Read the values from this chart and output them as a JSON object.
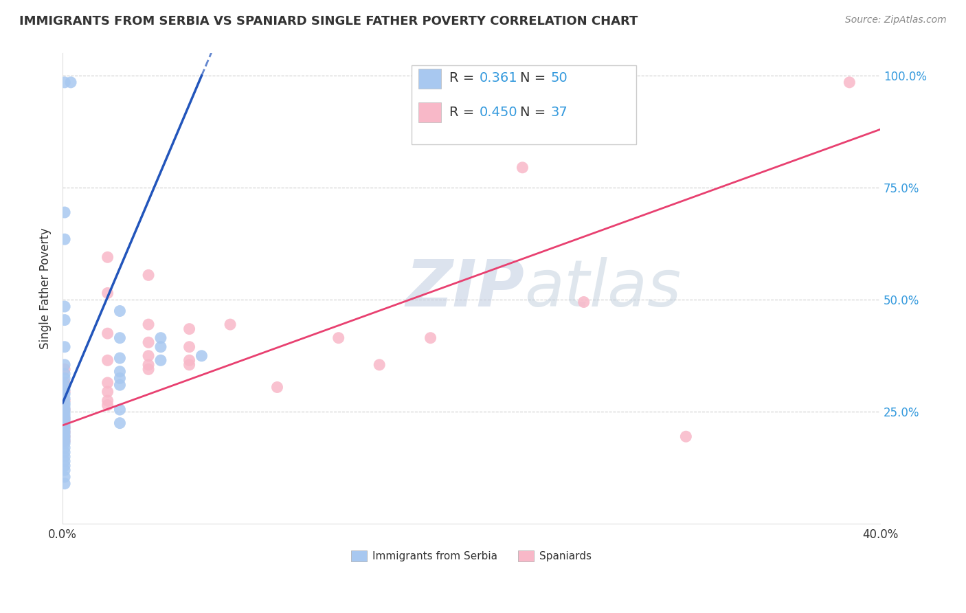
{
  "title": "IMMIGRANTS FROM SERBIA VS SPANIARD SINGLE FATHER POVERTY CORRELATION CHART",
  "source": "Source: ZipAtlas.com",
  "ylabel": "Single Father Poverty",
  "legend_serbia": {
    "R": "0.361",
    "N": "50",
    "label": "Immigrants from Serbia"
  },
  "legend_spaniard": {
    "R": "0.450",
    "N": "37",
    "label": "Spaniards"
  },
  "serbia_color": "#a8c8f0",
  "spaniard_color": "#f8b8c8",
  "serbia_line_color": "#2255bb",
  "spaniard_line_color": "#e84070",
  "serbia_scatter": [
    [
      0.001,
      0.985
    ],
    [
      0.004,
      0.985
    ],
    [
      0.001,
      0.695
    ],
    [
      0.001,
      0.635
    ],
    [
      0.001,
      0.485
    ],
    [
      0.001,
      0.455
    ],
    [
      0.001,
      0.395
    ],
    [
      0.001,
      0.355
    ],
    [
      0.001,
      0.335
    ],
    [
      0.001,
      0.325
    ],
    [
      0.001,
      0.31
    ],
    [
      0.001,
      0.3
    ],
    [
      0.001,
      0.29
    ],
    [
      0.001,
      0.28
    ],
    [
      0.001,
      0.27
    ],
    [
      0.001,
      0.265
    ],
    [
      0.001,
      0.258
    ],
    [
      0.001,
      0.252
    ],
    [
      0.001,
      0.246
    ],
    [
      0.001,
      0.24
    ],
    [
      0.001,
      0.234
    ],
    [
      0.001,
      0.228
    ],
    [
      0.001,
      0.222
    ],
    [
      0.001,
      0.216
    ],
    [
      0.001,
      0.21
    ],
    [
      0.001,
      0.204
    ],
    [
      0.001,
      0.198
    ],
    [
      0.001,
      0.192
    ],
    [
      0.001,
      0.186
    ],
    [
      0.001,
      0.18
    ],
    [
      0.001,
      0.17
    ],
    [
      0.001,
      0.16
    ],
    [
      0.001,
      0.15
    ],
    [
      0.001,
      0.14
    ],
    [
      0.001,
      0.13
    ],
    [
      0.001,
      0.12
    ],
    [
      0.001,
      0.105
    ],
    [
      0.001,
      0.09
    ],
    [
      0.028,
      0.475
    ],
    [
      0.028,
      0.415
    ],
    [
      0.028,
      0.37
    ],
    [
      0.028,
      0.34
    ],
    [
      0.028,
      0.325
    ],
    [
      0.028,
      0.31
    ],
    [
      0.028,
      0.255
    ],
    [
      0.028,
      0.225
    ],
    [
      0.048,
      0.415
    ],
    [
      0.048,
      0.395
    ],
    [
      0.048,
      0.365
    ],
    [
      0.068,
      0.375
    ]
  ],
  "spaniard_scatter": [
    [
      0.001,
      0.345
    ],
    [
      0.001,
      0.315
    ],
    [
      0.001,
      0.295
    ],
    [
      0.001,
      0.275
    ],
    [
      0.001,
      0.255
    ],
    [
      0.001,
      0.235
    ],
    [
      0.001,
      0.215
    ],
    [
      0.001,
      0.205
    ],
    [
      0.001,
      0.195
    ],
    [
      0.001,
      0.185
    ],
    [
      0.022,
      0.595
    ],
    [
      0.022,
      0.515
    ],
    [
      0.022,
      0.425
    ],
    [
      0.022,
      0.365
    ],
    [
      0.022,
      0.315
    ],
    [
      0.022,
      0.295
    ],
    [
      0.022,
      0.275
    ],
    [
      0.022,
      0.265
    ],
    [
      0.042,
      0.555
    ],
    [
      0.042,
      0.445
    ],
    [
      0.042,
      0.405
    ],
    [
      0.042,
      0.375
    ],
    [
      0.042,
      0.355
    ],
    [
      0.042,
      0.345
    ],
    [
      0.062,
      0.435
    ],
    [
      0.062,
      0.395
    ],
    [
      0.062,
      0.365
    ],
    [
      0.062,
      0.355
    ],
    [
      0.082,
      0.445
    ],
    [
      0.105,
      0.305
    ],
    [
      0.135,
      0.415
    ],
    [
      0.155,
      0.355
    ],
    [
      0.18,
      0.415
    ],
    [
      0.225,
      0.795
    ],
    [
      0.255,
      0.495
    ],
    [
      0.305,
      0.195
    ],
    [
      0.385,
      0.985
    ]
  ],
  "watermark_zip": "ZIP",
  "watermark_atlas": "atlas",
  "xlim": [
    0.0,
    0.4
  ],
  "ylim": [
    0.0,
    1.05
  ],
  "x_ticks": [
    0.0,
    0.1,
    0.2,
    0.3,
    0.4
  ],
  "x_tick_labels": [
    "0.0%",
    "",
    "",
    "",
    "40.0%"
  ],
  "y_ticks": [
    0.25,
    0.5,
    0.75,
    1.0
  ],
  "y_tick_labels_right": [
    "25.0%",
    "50.0%",
    "75.0%",
    "100.0%"
  ],
  "background_color": "#ffffff",
  "grid_color": "#cccccc",
  "serbia_line_x0": 0.0,
  "serbia_line_y0": 0.27,
  "serbia_line_x1": 0.068,
  "serbia_line_y1": 1.0,
  "spaniard_line_x0": 0.0,
  "spaniard_line_y0": 0.22,
  "spaniard_line_x1": 0.4,
  "spaniard_line_y1": 0.88
}
